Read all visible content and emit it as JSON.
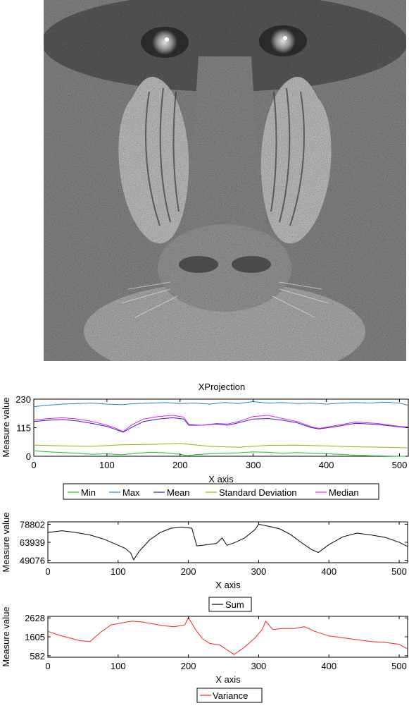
{
  "image": {
    "subject": "baboon",
    "colors": {
      "base": "#6a6a6a",
      "nose": "#9a9a9a",
      "cheek": "#c8c8c8"
    }
  },
  "chart_data": [
    {
      "type": "line",
      "title": "XProjection",
      "xlabel": "X axis",
      "ylabel": "Measure value",
      "xlim": [
        0,
        512
      ],
      "ylim": [
        0,
        230
      ],
      "xticks": [
        "0",
        "100",
        "200",
        "300",
        "400",
        "500"
      ],
      "yticks": [
        "0",
        "115",
        "230"
      ],
      "legend_position": "bottom",
      "series": [
        {
          "name": "Min",
          "color": "#1ec21e",
          "x": [
            0,
            20,
            40,
            60,
            80,
            100,
            120,
            140,
            160,
            180,
            200,
            210,
            220,
            240,
            260,
            280,
            300,
            320,
            340,
            360,
            380,
            400,
            420,
            440,
            460,
            480,
            500,
            512
          ],
          "y": [
            22,
            18,
            15,
            12,
            8,
            10,
            6,
            12,
            16,
            14,
            8,
            2,
            6,
            10,
            12,
            14,
            18,
            16,
            12,
            15,
            12,
            10,
            8,
            4,
            2,
            1,
            0,
            0
          ]
        },
        {
          "name": "Max",
          "color": "#1f86c9",
          "x": [
            0,
            20,
            40,
            60,
            80,
            100,
            120,
            140,
            160,
            180,
            200,
            220,
            240,
            260,
            280,
            300,
            320,
            340,
            360,
            380,
            400,
            420,
            440,
            460,
            480,
            500,
            512
          ],
          "y": [
            200,
            206,
            210,
            212,
            214,
            210,
            208,
            212,
            214,
            216,
            212,
            214,
            210,
            216,
            212,
            220,
            214,
            216,
            212,
            214,
            210,
            214,
            216,
            214,
            218,
            214,
            205
          ]
        },
        {
          "name": "Mean",
          "color": "#2323d8",
          "x": [
            0,
            20,
            40,
            60,
            80,
            100,
            110,
            122,
            135,
            150,
            170,
            190,
            205,
            212,
            230,
            250,
            265,
            280,
            300,
            320,
            340,
            360,
            380,
            390,
            410,
            440,
            470,
            500,
            512
          ],
          "y": [
            140,
            145,
            148,
            142,
            132,
            120,
            110,
            97,
            118,
            140,
            150,
            155,
            150,
            125,
            125,
            130,
            125,
            135,
            150,
            152,
            145,
            135,
            115,
            110,
            118,
            133,
            128,
            118,
            115
          ]
        },
        {
          "name": "Standard Deviation",
          "color": "#a8a818",
          "x": [
            0,
            40,
            80,
            120,
            160,
            200,
            240,
            280,
            320,
            360,
            400,
            440,
            480,
            512
          ],
          "y": [
            45,
            42,
            40,
            46,
            48,
            52,
            40,
            36,
            44,
            45,
            42,
            38,
            36,
            34
          ]
        },
        {
          "name": "Median",
          "color": "#e020e0",
          "x": [
            0,
            20,
            40,
            60,
            80,
            100,
            110,
            122,
            135,
            150,
            170,
            190,
            205,
            212,
            230,
            250,
            265,
            280,
            300,
            320,
            340,
            360,
            380,
            390,
            410,
            440,
            470,
            500,
            512
          ],
          "y": [
            145,
            152,
            155,
            150,
            140,
            125,
            115,
            100,
            128,
            150,
            160,
            165,
            158,
            128,
            125,
            132,
            130,
            140,
            160,
            165,
            152,
            140,
            118,
            112,
            122,
            138,
            132,
            120,
            118
          ]
        }
      ]
    },
    {
      "type": "line",
      "xlabel": "X axis",
      "ylabel": "Measure value",
      "xlim": [
        0,
        512
      ],
      "ylim": [
        47076,
        80802
      ],
      "xticks": [
        "0",
        "100",
        "200",
        "300",
        "400",
        "500"
      ],
      "yticks": [
        "49076",
        "63939",
        "78802"
      ],
      "legend_position": "bottom",
      "series": [
        {
          "name": "Sum",
          "color": "#000000",
          "x": [
            0,
            20,
            40,
            60,
            80,
            100,
            110,
            118,
            122,
            130,
            145,
            160,
            175,
            190,
            205,
            212,
            220,
            240,
            248,
            255,
            265,
            280,
            295,
            300,
            315,
            330,
            345,
            360,
            375,
            385,
            400,
            420,
            440,
            460,
            480,
            500,
            512
          ],
          "y": [
            72000,
            73500,
            72000,
            70000,
            66500,
            61500,
            59000,
            55000,
            49500,
            56500,
            66000,
            72000,
            75500,
            76500,
            75500,
            61000,
            61500,
            63000,
            67500,
            61500,
            63500,
            67500,
            74500,
            78802,
            77000,
            75000,
            70500,
            64000,
            58000,
            55500,
            62000,
            68500,
            71500,
            70000,
            68000,
            64000,
            60500
          ]
        }
      ]
    },
    {
      "type": "line",
      "xlabel": "X axis",
      "ylabel": "Measure value",
      "xlim": [
        0,
        512
      ],
      "ylim": [
        500,
        2710
      ],
      "xticks": [
        "0",
        "100",
        "200",
        "300",
        "400",
        "500"
      ],
      "yticks": [
        "582",
        "1605",
        "2628"
      ],
      "legend_position": "bottom",
      "series": [
        {
          "name": "Variance",
          "color": "#ff1f1f",
          "x": [
            0,
            15,
            30,
            45,
            60,
            75,
            90,
            105,
            120,
            135,
            150,
            165,
            180,
            195,
            200,
            210,
            220,
            230,
            245,
            255,
            265,
            280,
            295,
            305,
            310,
            320,
            335,
            350,
            365,
            380,
            400,
            420,
            440,
            460,
            480,
            500,
            512
          ],
          "y": [
            1900,
            1700,
            1550,
            1400,
            1350,
            1850,
            2250,
            2350,
            2450,
            2400,
            2300,
            2200,
            2150,
            2250,
            2650,
            2000,
            1500,
            1250,
            1150,
            900,
            650,
            1050,
            1550,
            2000,
            2450,
            2000,
            2050,
            2050,
            2150,
            1900,
            1650,
            1550,
            1450,
            1350,
            1300,
            1200,
            950
          ]
        }
      ]
    }
  ]
}
